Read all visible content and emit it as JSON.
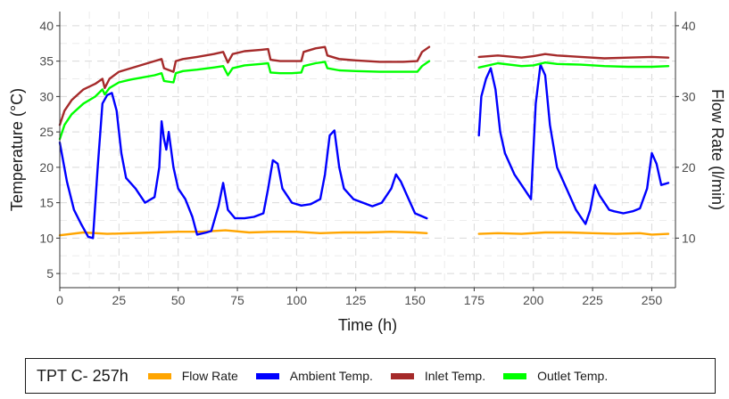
{
  "chart_data": {
    "type": "line",
    "title": "",
    "xlabel": "Time (h)",
    "ylabel": "Temperature (°C)",
    "y2label": "Flow Rate (l/min)",
    "xlim": [
      0,
      260
    ],
    "ylim": [
      3,
      42
    ],
    "y2lim": [
      3,
      42
    ],
    "x_ticks": [
      "0",
      "25",
      "50",
      "75",
      "100",
      "125",
      "150",
      "175",
      "200",
      "225",
      "250"
    ],
    "x_tick_values": [
      0,
      25,
      50,
      75,
      100,
      125,
      150,
      175,
      200,
      225,
      250
    ],
    "y_ticks": [
      "5",
      "10",
      "15",
      "20",
      "25",
      "30",
      "35",
      "40"
    ],
    "y_tick_values": [
      5,
      10,
      15,
      20,
      25,
      30,
      35,
      40
    ],
    "y2_ticks": [
      "10",
      "20",
      "30",
      "40"
    ],
    "y2_tick_values": [
      10,
      20,
      30,
      40
    ],
    "grid": true,
    "legend_position": "bottom",
    "legend_title": "TPT C- 257h",
    "series": [
      {
        "name": "Flow Rate",
        "color": "#FFA500",
        "axis": "right",
        "segments": [
          [
            [
              0,
              10.4
            ],
            [
              10,
              10.8
            ],
            [
              20,
              10.6
            ],
            [
              30,
              10.7
            ],
            [
              40,
              10.8
            ],
            [
              50,
              10.9
            ],
            [
              60,
              10.9
            ],
            [
              70,
              11.1
            ],
            [
              80,
              10.8
            ],
            [
              90,
              10.9
            ],
            [
              100,
              10.9
            ],
            [
              110,
              10.7
            ],
            [
              120,
              10.8
            ],
            [
              130,
              10.8
            ],
            [
              140,
              10.9
            ],
            [
              150,
              10.8
            ],
            [
              155,
              10.7
            ]
          ],
          [
            [
              177,
              10.6
            ],
            [
              185,
              10.7
            ],
            [
              195,
              10.6
            ],
            [
              205,
              10.8
            ],
            [
              215,
              10.8
            ],
            [
              225,
              10.7
            ],
            [
              235,
              10.6
            ],
            [
              245,
              10.7
            ],
            [
              250,
              10.5
            ],
            [
              257,
              10.6
            ]
          ]
        ]
      },
      {
        "name": "Ambient Temp.",
        "color": "#0000FF",
        "axis": "left",
        "segments": [
          [
            [
              0,
              23.5
            ],
            [
              3,
              18
            ],
            [
              6,
              14
            ],
            [
              9,
              12
            ],
            [
              12,
              10.2
            ],
            [
              14,
              10.0
            ],
            [
              16,
              20
            ],
            [
              18,
              29
            ],
            [
              20,
              30.2
            ],
            [
              22,
              30.5
            ],
            [
              24,
              28
            ],
            [
              26,
              22
            ],
            [
              28,
              18.5
            ],
            [
              32,
              17
            ],
            [
              36,
              15
            ],
            [
              40,
              15.8
            ],
            [
              42,
              20
            ],
            [
              43,
              26.5
            ],
            [
              44,
              24
            ],
            [
              45,
              22.5
            ],
            [
              46,
              25
            ],
            [
              48,
              20
            ],
            [
              50,
              17
            ],
            [
              53,
              15.5
            ],
            [
              56,
              13
            ],
            [
              58,
              10.5
            ],
            [
              62,
              10.8
            ],
            [
              64,
              11
            ],
            [
              67,
              14.5
            ],
            [
              69,
              17.8
            ],
            [
              71,
              14
            ],
            [
              74,
              12.8
            ],
            [
              78,
              12.8
            ],
            [
              82,
              13
            ],
            [
              86,
              13.5
            ],
            [
              88,
              17
            ],
            [
              90,
              21
            ],
            [
              92,
              20.5
            ],
            [
              94,
              17
            ],
            [
              98,
              15
            ],
            [
              102,
              14.6
            ],
            [
              106,
              14.8
            ],
            [
              110,
              15.5
            ],
            [
              112,
              19
            ],
            [
              114,
              24.5
            ],
            [
              116,
              25.2
            ],
            [
              118,
              20
            ],
            [
              120,
              17
            ],
            [
              124,
              15.5
            ],
            [
              128,
              15
            ],
            [
              132,
              14.5
            ],
            [
              136,
              15
            ],
            [
              140,
              17
            ],
            [
              142,
              19
            ],
            [
              144,
              18
            ],
            [
              146,
              16.5
            ],
            [
              150,
              13.5
            ],
            [
              155,
              12.8
            ]
          ],
          [
            [
              177,
              24.5
            ],
            [
              178,
              30
            ],
            [
              180,
              32.5
            ],
            [
              182,
              34
            ],
            [
              184,
              31
            ],
            [
              186,
              25
            ],
            [
              188,
              22
            ],
            [
              192,
              19
            ],
            [
              196,
              17
            ],
            [
              199,
              15.5
            ],
            [
              201,
              29
            ],
            [
              203,
              34.5
            ],
            [
              205,
              33
            ],
            [
              207,
              26
            ],
            [
              210,
              20
            ],
            [
              214,
              17
            ],
            [
              218,
              14
            ],
            [
              220,
              13
            ],
            [
              222,
              12
            ],
            [
              224,
              14
            ],
            [
              226,
              17.5
            ],
            [
              228,
              16
            ],
            [
              230,
              15
            ],
            [
              232,
              14
            ],
            [
              234,
              13.8
            ],
            [
              238,
              13.5
            ],
            [
              242,
              13.8
            ],
            [
              245,
              14.2
            ],
            [
              248,
              17
            ],
            [
              250,
              22
            ],
            [
              252,
              20.5
            ],
            [
              254,
              17.5
            ],
            [
              257,
              17.8
            ]
          ]
        ]
      },
      {
        "name": "Inlet Temp.",
        "color": "#A52A2A",
        "axis": "left",
        "segments": [
          [
            [
              0,
              26
            ],
            [
              2,
              28
            ],
            [
              5,
              29.5
            ],
            [
              10,
              31
            ],
            [
              15,
              31.8
            ],
            [
              18,
              32.5
            ],
            [
              19,
              31.2
            ],
            [
              21,
              32.5
            ],
            [
              25,
              33.5
            ],
            [
              30,
              34
            ],
            [
              35,
              34.5
            ],
            [
              40,
              35
            ],
            [
              43,
              35.3
            ],
            [
              44,
              34
            ],
            [
              48,
              33.5
            ],
            [
              49,
              35
            ],
            [
              52,
              35.3
            ],
            [
              58,
              35.6
            ],
            [
              65,
              36
            ],
            [
              69,
              36.3
            ],
            [
              71,
              34.8
            ],
            [
              73,
              36
            ],
            [
              78,
              36.4
            ],
            [
              85,
              36.6
            ],
            [
              88,
              36.7
            ],
            [
              89,
              35.2
            ],
            [
              93,
              35
            ],
            [
              98,
              35
            ],
            [
              102,
              35
            ],
            [
              103,
              36.3
            ],
            [
              108,
              36.8
            ],
            [
              112,
              37
            ],
            [
              113,
              35.8
            ],
            [
              118,
              35.3
            ],
            [
              125,
              35.1
            ],
            [
              135,
              34.9
            ],
            [
              145,
              34.9
            ],
            [
              151,
              35
            ],
            [
              153,
              36.3
            ],
            [
              156,
              37
            ]
          ],
          [
            [
              177,
              35.6
            ],
            [
              185,
              35.8
            ],
            [
              195,
              35.5
            ],
            [
              200,
              35.7
            ],
            [
              205,
              36
            ],
            [
              210,
              35.8
            ],
            [
              220,
              35.6
            ],
            [
              230,
              35.4
            ],
            [
              240,
              35.5
            ],
            [
              250,
              35.6
            ],
            [
              257,
              35.5
            ]
          ]
        ]
      },
      {
        "name": "Outlet Temp.",
        "color": "#00FF00",
        "axis": "left",
        "segments": [
          [
            [
              0,
              24
            ],
            [
              2,
              26
            ],
            [
              5,
              27.5
            ],
            [
              10,
              29
            ],
            [
              15,
              30
            ],
            [
              18,
              31
            ],
            [
              19,
              30.3
            ],
            [
              21,
              31.2
            ],
            [
              25,
              32
            ],
            [
              30,
              32.4
            ],
            [
              35,
              32.7
            ],
            [
              40,
              33
            ],
            [
              43,
              33.3
            ],
            [
              44,
              32.2
            ],
            [
              48,
              32
            ],
            [
              49,
              33.3
            ],
            [
              52,
              33.6
            ],
            [
              58,
              33.8
            ],
            [
              65,
              34.1
            ],
            [
              69,
              34.3
            ],
            [
              71,
              33
            ],
            [
              73,
              34
            ],
            [
              78,
              34.4
            ],
            [
              85,
              34.6
            ],
            [
              88,
              34.7
            ],
            [
              89,
              33.4
            ],
            [
              93,
              33.3
            ],
            [
              98,
              33.3
            ],
            [
              102,
              33.4
            ],
            [
              103,
              34.3
            ],
            [
              108,
              34.7
            ],
            [
              112,
              34.9
            ],
            [
              113,
              34
            ],
            [
              118,
              33.7
            ],
            [
              125,
              33.6
            ],
            [
              135,
              33.5
            ],
            [
              145,
              33.5
            ],
            [
              151,
              33.5
            ],
            [
              153,
              34.3
            ],
            [
              156,
              35
            ]
          ],
          [
            [
              177,
              34.1
            ],
            [
              185,
              34.7
            ],
            [
              195,
              34.3
            ],
            [
              200,
              34.4
            ],
            [
              205,
              34.8
            ],
            [
              210,
              34.6
            ],
            [
              220,
              34.5
            ],
            [
              230,
              34.3
            ],
            [
              240,
              34.2
            ],
            [
              250,
              34.2
            ],
            [
              257,
              34.3
            ]
          ]
        ]
      }
    ]
  }
}
